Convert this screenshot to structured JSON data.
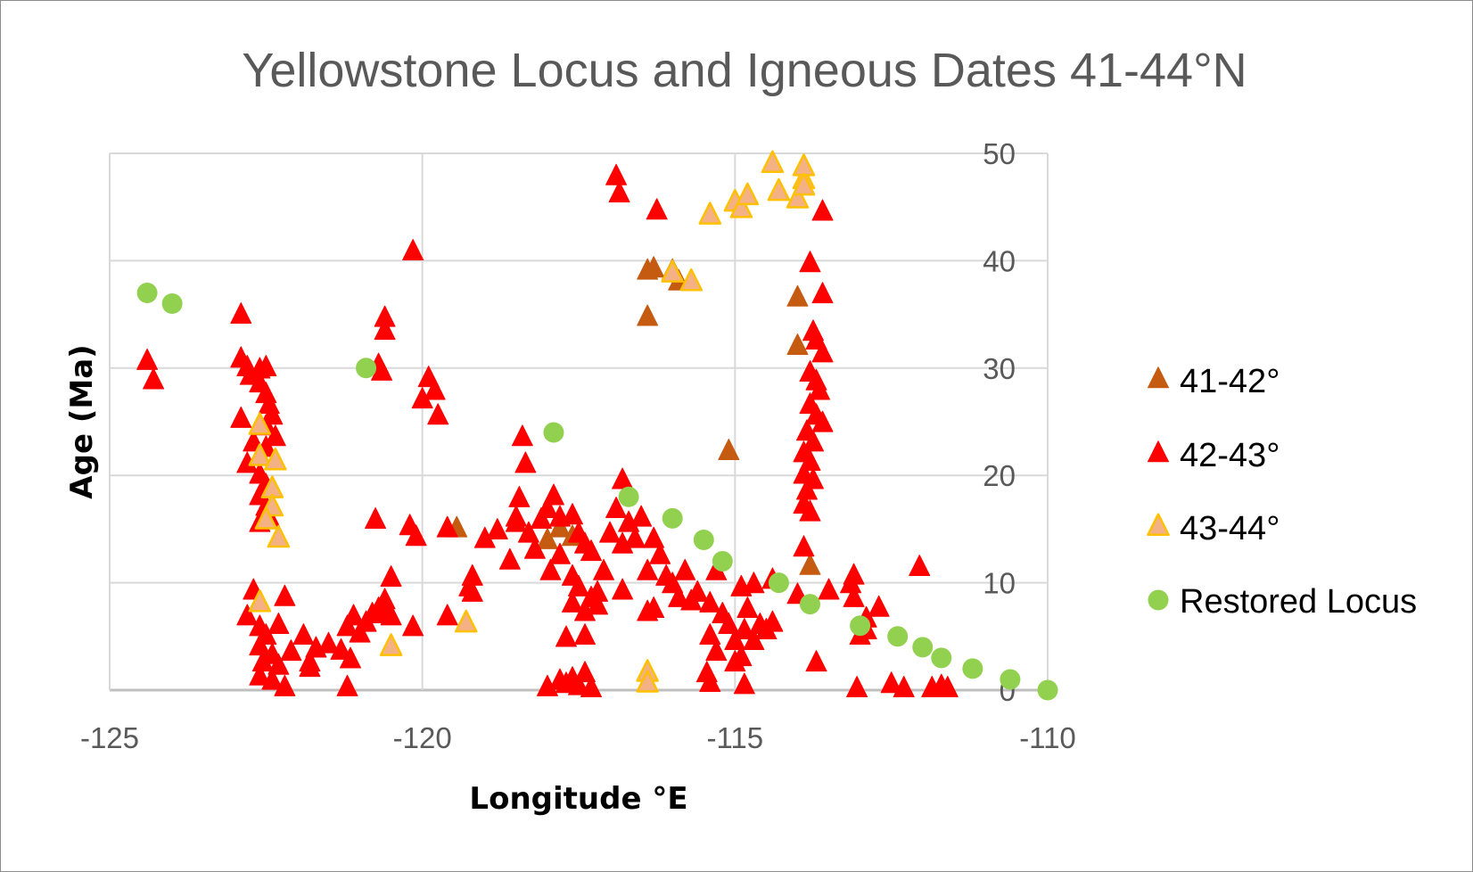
{
  "chart_data": {
    "type": "scatter",
    "title": "Yellowstone Locus and Igneous Dates 41-44°N",
    "xlabel": "Longitude °E",
    "ylabel": "Age (Ma)",
    "xlim": [
      -125,
      -110
    ],
    "ylim": [
      0,
      50
    ],
    "xticks": [
      -125,
      -120,
      -115,
      -110
    ],
    "yticks": [
      0,
      10,
      20,
      30,
      40,
      50
    ],
    "xtick_labels": [
      "-125",
      "-120",
      "-115",
      "-110"
    ],
    "ytick_labels": [
      "0",
      "10",
      "20",
      "30",
      "40",
      "50"
    ],
    "grid": true,
    "legend_position": "right",
    "series": [
      {
        "name": "41-42°",
        "marker": "triangle",
        "color": "#c55a11",
        "stroke": "#c55a11",
        "points": [
          [
            -116.4,
            39
          ],
          [
            -116.3,
            39.2
          ],
          [
            -116.0,
            39
          ],
          [
            -115.9,
            38
          ],
          [
            -116.4,
            34.7
          ],
          [
            -115.1,
            22.2
          ],
          [
            -114.0,
            36.5
          ],
          [
            -114.0,
            32
          ],
          [
            -113.8,
            11.5
          ],
          [
            -119.45,
            15
          ],
          [
            -118.0,
            13.9
          ],
          [
            -117.8,
            15
          ],
          [
            -117.6,
            14.2
          ]
        ]
      },
      {
        "name": "42-43°",
        "marker": "triangle",
        "color": "#ff0000",
        "stroke": "#ff0000",
        "points": [
          [
            -124.4,
            30.6
          ],
          [
            -124.3,
            28.8
          ],
          [
            -122.9,
            34.9
          ],
          [
            -122.9,
            30.8
          ],
          [
            -122.8,
            30
          ],
          [
            -122.75,
            29.2
          ],
          [
            -122.6,
            29.8
          ],
          [
            -122.5,
            30
          ],
          [
            -122.6,
            28.5
          ],
          [
            -122.5,
            27.5
          ],
          [
            -122.45,
            26.5
          ],
          [
            -122.4,
            25.5
          ],
          [
            -122.9,
            25.2
          ],
          [
            -122.5,
            24.5
          ],
          [
            -122.35,
            23.5
          ],
          [
            -122.7,
            23
          ],
          [
            -122.5,
            22.5
          ],
          [
            -122.8,
            21
          ],
          [
            -122.6,
            20
          ],
          [
            -122.5,
            19
          ],
          [
            -122.6,
            18
          ],
          [
            -122.5,
            17
          ],
          [
            -122.45,
            16
          ],
          [
            -122.6,
            15.5
          ],
          [
            -122.7,
            9.2
          ],
          [
            -122.8,
            6.8
          ],
          [
            -122.2,
            8.6
          ],
          [
            -122.6,
            5.8
          ],
          [
            -122.5,
            5
          ],
          [
            -122.3,
            6
          ],
          [
            -122.6,
            4
          ],
          [
            -122.4,
            3.2
          ],
          [
            -122.55,
            2.5
          ],
          [
            -122.6,
            1.2
          ],
          [
            -122.4,
            0.8
          ],
          [
            -122.2,
            0.2
          ],
          [
            -122.3,
            2.2
          ],
          [
            -122.1,
            3.5
          ],
          [
            -121.9,
            5
          ],
          [
            -121.8,
            2.5
          ],
          [
            -121.7,
            3.8
          ],
          [
            -121.5,
            4.2
          ],
          [
            -121.8,
            2
          ],
          [
            -121.3,
            3.6
          ],
          [
            -121.2,
            5.8
          ],
          [
            -121.1,
            6.8
          ],
          [
            -121.0,
            5.2
          ],
          [
            -120.9,
            6.2
          ],
          [
            -121.15,
            2.8
          ],
          [
            -121.2,
            0.2
          ],
          [
            -120.7,
            7.5
          ],
          [
            -120.6,
            8.3
          ],
          [
            -120.8,
            7
          ],
          [
            -120.5,
            6.8
          ],
          [
            -120.5,
            10.4
          ],
          [
            -120.6,
            7.2
          ],
          [
            -120.15,
            5.8
          ],
          [
            -120.6,
            34.6
          ],
          [
            -120.6,
            33.4
          ],
          [
            -120.7,
            30.2
          ],
          [
            -120.65,
            29.6
          ],
          [
            -120.75,
            15.8
          ],
          [
            -120.15,
            40.8
          ],
          [
            -119.9,
            29
          ],
          [
            -120.0,
            27
          ],
          [
            -119.8,
            27.8
          ],
          [
            -119.75,
            25.5
          ],
          [
            -120.2,
            15.2
          ],
          [
            -120.1,
            14.2
          ],
          [
            -119.6,
            15
          ],
          [
            -119.6,
            6.8
          ],
          [
            -119.2,
            10.5
          ],
          [
            -119.25,
            9.5
          ],
          [
            -119.2,
            9
          ],
          [
            -119.0,
            14
          ],
          [
            -118.8,
            14.8
          ],
          [
            -118.6,
            12
          ],
          [
            -118.5,
            15.5
          ],
          [
            -118.45,
            17.8
          ],
          [
            -118.5,
            16
          ],
          [
            -118.3,
            14.5
          ],
          [
            -118.4,
            23.5
          ],
          [
            -118.35,
            21
          ],
          [
            -118.2,
            13
          ],
          [
            -118.1,
            15.8
          ],
          [
            -118.0,
            16.8
          ],
          [
            -117.9,
            18
          ],
          [
            -117.95,
            11
          ],
          [
            -117.8,
            12.5
          ],
          [
            -117.8,
            16
          ],
          [
            -117.6,
            16.2
          ],
          [
            -117.5,
            14.5
          ],
          [
            -117.4,
            13.5
          ],
          [
            -117.3,
            12.8
          ],
          [
            -117.6,
            10.5
          ],
          [
            -117.5,
            9.5
          ],
          [
            -117.3,
            8.5
          ],
          [
            -117.4,
            7.2
          ],
          [
            -117.2,
            9
          ],
          [
            -117.1,
            11
          ],
          [
            -117.6,
            8
          ],
          [
            -117.7,
            4.8
          ],
          [
            -117.4,
            5
          ],
          [
            -117.2,
            7.8
          ],
          [
            -117.0,
            14.5
          ],
          [
            -116.9,
            16.8
          ],
          [
            -116.8,
            19.5
          ],
          [
            -116.7,
            15.5
          ],
          [
            -116.8,
            13.5
          ],
          [
            -116.6,
            14
          ],
          [
            -116.5,
            16
          ],
          [
            -116.3,
            14
          ],
          [
            -116.2,
            12.5
          ],
          [
            -116.4,
            11
          ],
          [
            -116.8,
            9.2
          ],
          [
            -116.3,
            7.5
          ],
          [
            -116.0,
            9.8
          ],
          [
            -116.1,
            10.5
          ],
          [
            -115.9,
            8.5
          ],
          [
            -115.8,
            11
          ],
          [
            -115.6,
            9
          ],
          [
            -115.7,
            8.2
          ],
          [
            -116.4,
            7.2
          ],
          [
            -118.0,
            0.2
          ],
          [
            -117.7,
            0.5
          ],
          [
            -117.6,
            1
          ],
          [
            -117.5,
            0.3
          ],
          [
            -117.4,
            1.5
          ],
          [
            -117.3,
            0.1
          ],
          [
            -117.8,
            0.8
          ],
          [
            -116.9,
            47.8
          ],
          [
            -116.85,
            46.2
          ],
          [
            -116.25,
            44.6
          ],
          [
            -115.4,
            8
          ],
          [
            -115.4,
            5
          ],
          [
            -115.3,
            3.5
          ],
          [
            -115.45,
            1.5
          ],
          [
            -115.4,
            0.6
          ],
          [
            -115.1,
            6
          ],
          [
            -115.2,
            7
          ],
          [
            -115.0,
            4.5
          ],
          [
            -114.9,
            3
          ],
          [
            -115.0,
            2.5
          ],
          [
            -114.85,
            5.5
          ],
          [
            -114.9,
            9.5
          ],
          [
            -114.8,
            7.5
          ],
          [
            -114.7,
            4.5
          ],
          [
            -114.6,
            6
          ],
          [
            -114.4,
            10.2
          ],
          [
            -114.5,
            5.5
          ],
          [
            -114.4,
            6.2
          ],
          [
            -114.85,
            0.4
          ],
          [
            -114.7,
            9.8
          ],
          [
            -115.3,
            11
          ],
          [
            -113.6,
            44.5
          ],
          [
            -113.8,
            39.7
          ],
          [
            -113.6,
            36.8
          ],
          [
            -113.75,
            33.3
          ],
          [
            -113.7,
            32.5
          ],
          [
            -113.6,
            31.3
          ],
          [
            -113.8,
            29.5
          ],
          [
            -113.7,
            28.7
          ],
          [
            -113.65,
            27.8
          ],
          [
            -113.8,
            26.5
          ],
          [
            -113.7,
            25.5
          ],
          [
            -113.6,
            24.8
          ],
          [
            -113.85,
            24
          ],
          [
            -113.75,
            23
          ],
          [
            -113.9,
            22
          ],
          [
            -113.8,
            21.2
          ],
          [
            -113.9,
            20
          ],
          [
            -113.75,
            19.5
          ],
          [
            -113.85,
            18.5
          ],
          [
            -113.9,
            17.2
          ],
          [
            -113.8,
            16.5
          ],
          [
            -113.9,
            13.2
          ],
          [
            -114.0,
            8.8
          ],
          [
            -113.5,
            9.2
          ],
          [
            -113.7,
            2.5
          ],
          [
            -113.1,
            10.6
          ],
          [
            -113.15,
            9.8
          ],
          [
            -113.1,
            8.5
          ],
          [
            -112.9,
            6.6
          ],
          [
            -113.0,
            5
          ],
          [
            -112.9,
            5.5
          ],
          [
            -112.7,
            7.6
          ],
          [
            -113.05,
            0.1
          ],
          [
            -112.5,
            0.5
          ],
          [
            -112.3,
            0.1
          ],
          [
            -112.05,
            11.4
          ],
          [
            -111.85,
            0.1
          ],
          [
            -111.6,
            0.1
          ],
          [
            -111.7,
            0.3
          ]
        ]
      },
      {
        "name": "43-44°",
        "marker": "triangle",
        "color": "#f4b183",
        "stroke": "#ffc000",
        "points": [
          [
            -122.6,
            24.6
          ],
          [
            -122.6,
            21.7
          ],
          [
            -122.35,
            21.3
          ],
          [
            -122.4,
            18.7
          ],
          [
            -122.4,
            17
          ],
          [
            -122.5,
            15.8
          ],
          [
            -122.3,
            14.1
          ],
          [
            -122.6,
            8.1
          ],
          [
            -120.5,
            4
          ],
          [
            -119.3,
            6.2
          ],
          [
            -116.4,
            1.6
          ],
          [
            -116.4,
            0.6
          ],
          [
            -116.0,
            38.8
          ],
          [
            -115.7,
            38
          ],
          [
            -115.4,
            44.2
          ],
          [
            -115.0,
            45.4
          ],
          [
            -114.9,
            44.8
          ],
          [
            -114.8,
            46
          ],
          [
            -114.4,
            49
          ],
          [
            -114.3,
            46.4
          ],
          [
            -114.0,
            45.7
          ],
          [
            -113.9,
            47.5
          ],
          [
            -113.9,
            48.7
          ],
          [
            -113.9,
            46.9
          ]
        ]
      },
      {
        "name": "Restored Locus",
        "marker": "circle",
        "color": "#92d050",
        "stroke": "#92d050",
        "points": [
          [
            -124.4,
            37
          ],
          [
            -124.0,
            36
          ],
          [
            -120.9,
            30
          ],
          [
            -117.9,
            24
          ],
          [
            -116.7,
            18
          ],
          [
            -116.0,
            16
          ],
          [
            -115.5,
            14
          ],
          [
            -115.2,
            12
          ],
          [
            -114.3,
            10
          ],
          [
            -113.8,
            8
          ],
          [
            -113.0,
            6
          ],
          [
            -112.4,
            5
          ],
          [
            -112.0,
            4
          ],
          [
            -111.7,
            3
          ],
          [
            -111.2,
            2
          ],
          [
            -110.6,
            1
          ],
          [
            -110.0,
            0
          ]
        ]
      }
    ]
  }
}
